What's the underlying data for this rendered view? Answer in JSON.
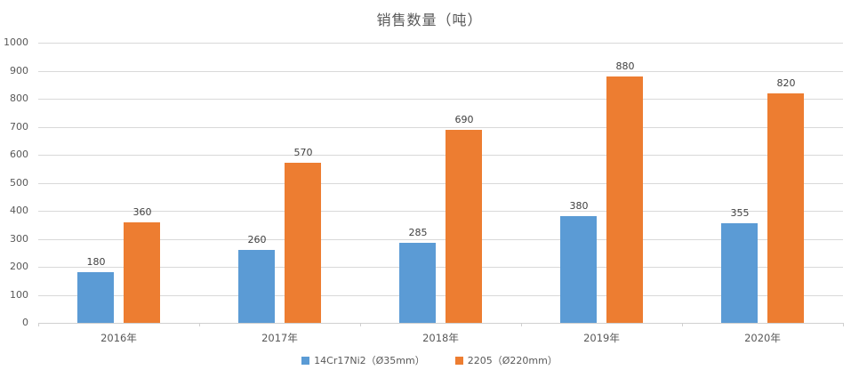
{
  "chart_data": {
    "type": "bar",
    "title": "销售数量（吨）",
    "categories": [
      "2016年",
      "2017年",
      "2018年",
      "2019年",
      "2020年"
    ],
    "series": [
      {
        "name": "14Cr17Ni2（Ø35mm）",
        "color": "#5B9BD5",
        "values": [
          180,
          260,
          285,
          380,
          355
        ]
      },
      {
        "name": "2205（Ø220mm）",
        "color": "#ED7D31",
        "values": [
          360,
          570,
          690,
          880,
          820
        ]
      }
    ],
    "xlabel": "",
    "ylabel": "",
    "ylim": [
      0,
      1000
    ],
    "ytick_step": 100,
    "yticks": [
      "0",
      "100",
      "200",
      "300",
      "400",
      "500",
      "600",
      "700",
      "800",
      "900",
      "1000"
    ],
    "grid": true,
    "legend_position": "bottom",
    "data_labels": true,
    "colors": {
      "gridline": "#D9D9D9",
      "axis_line": "#D0D0D0",
      "tick_mark": "#D0D0D0",
      "axis_text": "#595959",
      "title_text": "#595959",
      "data_label_text": "#404040",
      "background": "#FFFFFF"
    }
  }
}
